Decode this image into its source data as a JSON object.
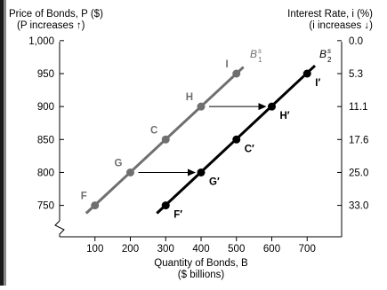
{
  "chart_data": {
    "type": "line",
    "left_axis_title_line1": "Price of Bonds,  P ($)",
    "left_axis_title_line2": "(P increases ↑)",
    "right_axis_title_line1": "Interest Rate, i (%)",
    "right_axis_title_line2": "(i increases ↓)",
    "xlabel_line1": "Quantity of Bonds, B",
    "xlabel_line2": "($ billions)",
    "x_ticks": [
      100,
      200,
      300,
      400,
      500,
      600,
      700
    ],
    "y_ticks": [
      750,
      800,
      850,
      900,
      950,
      1000
    ],
    "y_tick_labels": [
      "750",
      "800",
      "850",
      "900",
      "950",
      "1,000"
    ],
    "right_ticks": [
      {
        "price": 1000,
        "label": "0.0"
      },
      {
        "price": 950,
        "label": "5.3"
      },
      {
        "price": 900,
        "label": "11.1"
      },
      {
        "price": 850,
        "label": "17.6"
      },
      {
        "price": 800,
        "label": "25.0"
      },
      {
        "price": 750,
        "label": "33.0"
      }
    ],
    "xlim": [
      0,
      770
    ],
    "ylim": [
      705,
      1010
    ],
    "series": [
      {
        "name": "B¹ˢ",
        "name_main": "B",
        "name_sup": "s",
        "name_sub": "1",
        "color": "#6f6f6f",
        "line_from": [
          75,
          738
        ],
        "line_to": [
          520,
          960
        ],
        "points": [
          {
            "label": "F",
            "x": 100,
            "y": 750
          },
          {
            "label": "G",
            "x": 200,
            "y": 800
          },
          {
            "label": "C",
            "x": 300,
            "y": 850
          },
          {
            "label": "H",
            "x": 400,
            "y": 900
          },
          {
            "label": "I",
            "x": 500,
            "y": 950
          }
        ]
      },
      {
        "name": "B₂ˢ",
        "name_main": "B",
        "name_sup": "s",
        "name_sub": "2",
        "color": "#000000",
        "line_from": [
          275,
          738
        ],
        "line_to": [
          722,
          962
        ],
        "points": [
          {
            "label": "F′",
            "x": 300,
            "y": 750
          },
          {
            "label": "G′",
            "x": 400,
            "y": 800
          },
          {
            "label": "C′",
            "x": 500,
            "y": 850
          },
          {
            "label": "H′",
            "x": 600,
            "y": 900
          },
          {
            "label": "I′",
            "x": 700,
            "y": 950
          }
        ]
      }
    ],
    "arrows": [
      {
        "from": [
          200,
          800
        ],
        "to": [
          400,
          800
        ]
      },
      {
        "from": [
          400,
          900
        ],
        "to": [
          600,
          900
        ]
      }
    ],
    "colors": {
      "axis": "#000000",
      "shift_arrow": "#000000"
    }
  }
}
